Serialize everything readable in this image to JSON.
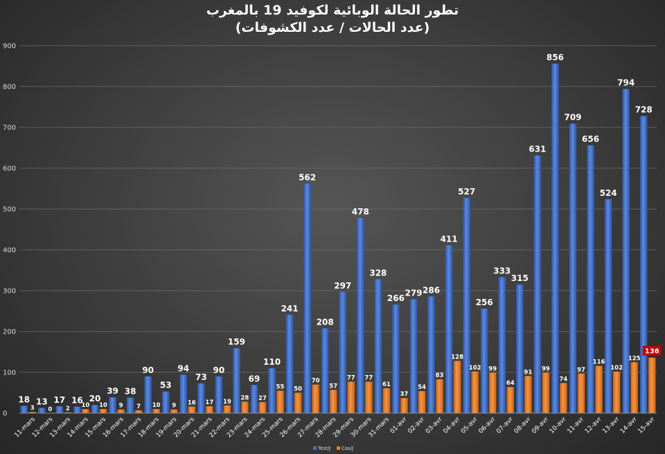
{
  "chart_data": {
    "type": "bar",
    "title": "تطور الحالة الوبائية لكوفيد 19 بالمغرب",
    "subtitle": "(عدد  الحالات / عدد الكشوفات)",
    "xlabel": "",
    "ylabel": "",
    "ylim": [
      0,
      900
    ],
    "yticks": [
      0,
      100,
      200,
      300,
      400,
      500,
      600,
      700,
      800,
      900
    ],
    "grid": true,
    "legend_position": "bottom",
    "categories": [
      "11-mars",
      "12-mars",
      "13-mars",
      "14-mars",
      "15-mars",
      "16-mars",
      "17-mars",
      "18-mars",
      "19-mars",
      "20-mars",
      "21-mars",
      "22-mars",
      "23-mars",
      "24-mars",
      "25-mars",
      "26-mars",
      "27-mars",
      "28-mars",
      "29-mars",
      "30-mars",
      "31-mars",
      "01-avr",
      "02-avr",
      "03-avr",
      "04-avr",
      "05-avr",
      "06-avr",
      "07-avr",
      "08-avr",
      "09-avr",
      "10-avr",
      "11-avr",
      "12-avr",
      "13-avr",
      "14-avr",
      "15-avr"
    ],
    "series": [
      {
        "name": "Test/J",
        "color": "#4472c4",
        "values": [
          18,
          13,
          17,
          16,
          20,
          39,
          38,
          90,
          53,
          94,
          73,
          90,
          159,
          69,
          110,
          241,
          562,
          208,
          297,
          478,
          328,
          266,
          279,
          286,
          411,
          527,
          256,
          333,
          315,
          631,
          856,
          709,
          656,
          524,
          794,
          728
        ]
      },
      {
        "name": "Cas/J",
        "color": "#ed7d31",
        "values": [
          3,
          0,
          2,
          10,
          10,
          9,
          7,
          10,
          9,
          16,
          17,
          19,
          28,
          27,
          55,
          50,
          70,
          57,
          77,
          77,
          61,
          37,
          54,
          83,
          128,
          102,
          99,
          64,
          91,
          99,
          74,
          97,
          116,
          102,
          125,
          136
        ]
      }
    ],
    "highlight": {
      "series": "Cas/J",
      "index": 35,
      "color": "#c00000"
    }
  }
}
